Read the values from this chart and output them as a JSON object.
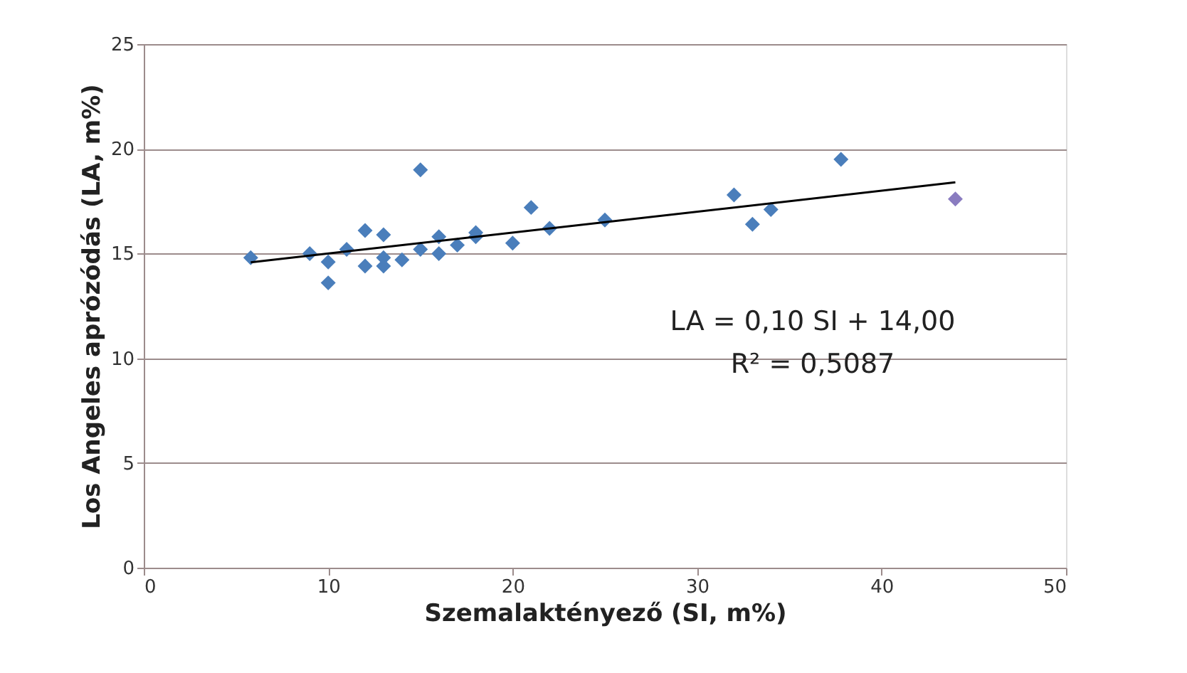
{
  "chart_data": {
    "type": "scatter",
    "xlabel": "Szemalaktényező (SI, m%)",
    "ylabel": "Los Angeles aprózódás (LA, m%)",
    "xlim": [
      0,
      50
    ],
    "xticks": [
      0,
      10,
      20,
      30,
      40,
      50
    ],
    "ylim": [
      0,
      25
    ],
    "yticks": [
      0,
      5,
      10,
      15,
      20,
      25
    ],
    "grid": "y",
    "marker": "diamond",
    "annotations": [
      "LA = 0,10 SI + 14,00",
      "R² = 0,5087"
    ],
    "series": [
      {
        "color": "#4a7ebb",
        "x": [
          5.8,
          9,
          10,
          10,
          11,
          12,
          12,
          13,
          13,
          13,
          14,
          15,
          15,
          16,
          16,
          17,
          18,
          18,
          20,
          21,
          22,
          25,
          32,
          33,
          34,
          37.8
        ],
        "values": [
          14.8,
          15.0,
          14.6,
          13.6,
          15.2,
          16.1,
          14.4,
          15.9,
          14.8,
          14.4,
          14.7,
          19.0,
          15.2,
          15.8,
          15.0,
          15.4,
          16.0,
          15.8,
          15.5,
          17.2,
          16.2,
          16.6,
          17.8,
          16.4,
          17.1,
          19.5
        ]
      },
      {
        "color": "#8a7cc0",
        "x": [
          44
        ],
        "values": [
          17.6
        ]
      },
      {
        "type": "line",
        "marker": "none",
        "color": "#000000",
        "x": [
          5.8,
          44
        ],
        "values": [
          14.58,
          18.4
        ]
      }
    ]
  }
}
